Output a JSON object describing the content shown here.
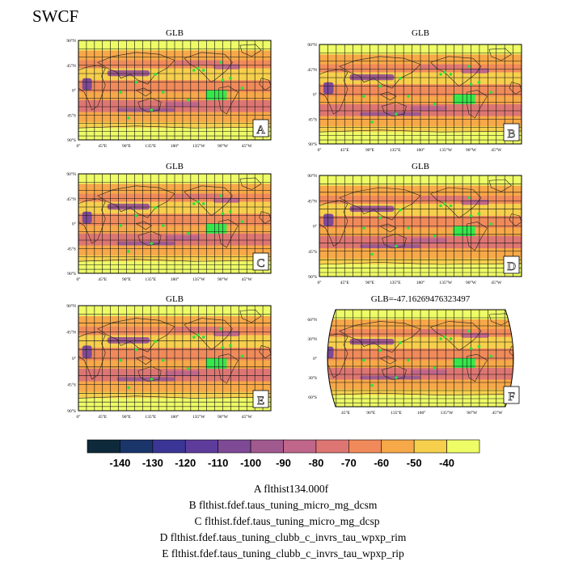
{
  "title": "SWCF",
  "panels": [
    {
      "letter": "A",
      "title": "GLB",
      "variant": "eq"
    },
    {
      "letter": "B",
      "title": "GLB",
      "variant": "eq"
    },
    {
      "letter": "C",
      "title": "GLB",
      "variant": "eq"
    },
    {
      "letter": "D",
      "title": "GLB",
      "variant": "eq"
    },
    {
      "letter": "E",
      "title": "GLB",
      "variant": "eq"
    },
    {
      "letter": "F",
      "title": "GLB=-47.16269476323497",
      "variant": "robinson"
    }
  ],
  "eq_axis": {
    "lat_labels": [
      "90°N",
      "45°N",
      "0°",
      "45°S",
      "90°S"
    ],
    "lon_labels": [
      "0°",
      "45°E",
      "90°E",
      "135°E",
      "180°",
      "135°W",
      "90°W",
      "45°W"
    ]
  },
  "robinson_axis": {
    "lat_labels": [
      "60°N",
      "30°N",
      "0°",
      "30°S",
      "60°S"
    ],
    "lon_labels": [
      "45°E",
      "90°E",
      "135°E",
      "180°",
      "135°W",
      "90°W",
      "45°W"
    ]
  },
  "colorbar": {
    "colors": [
      "#0e2a3a",
      "#1a3569",
      "#3b3596",
      "#5e3c9c",
      "#7e4a96",
      "#a05a8e",
      "#c0668a",
      "#dd7672",
      "#f08a5a",
      "#f7a848",
      "#f6cf4c",
      "#eefc66"
    ],
    "labels": [
      "-140",
      "-130",
      "-120",
      "-110",
      "-100",
      "-90",
      "-80",
      "-70",
      "-60",
      "-50",
      "-40"
    ]
  },
  "chart_data": {
    "type": "heatmap",
    "title": "SWCF",
    "variable": "SWCF",
    "global_mean_case_F": -47.16269476323497,
    "contour_levels": [
      -140,
      -130,
      -120,
      -110,
      -100,
      -90,
      -80,
      -70,
      -60,
      -50,
      -40
    ]
  },
  "cases": [
    "A  flthist134.000f",
    "B  flthist.fdef.taus_tuning_micro_mg_dcsm",
    "C  flthist.fdef.taus_tuning_micro_mg_dcsp",
    "D  flthist.fdef.taus_tuning_clubb_c_invrs_tau_wpxp_rim",
    "E  flthist.fdef.taus_tuning_clubb_c_invrs_tau_wpxp_rip"
  ]
}
